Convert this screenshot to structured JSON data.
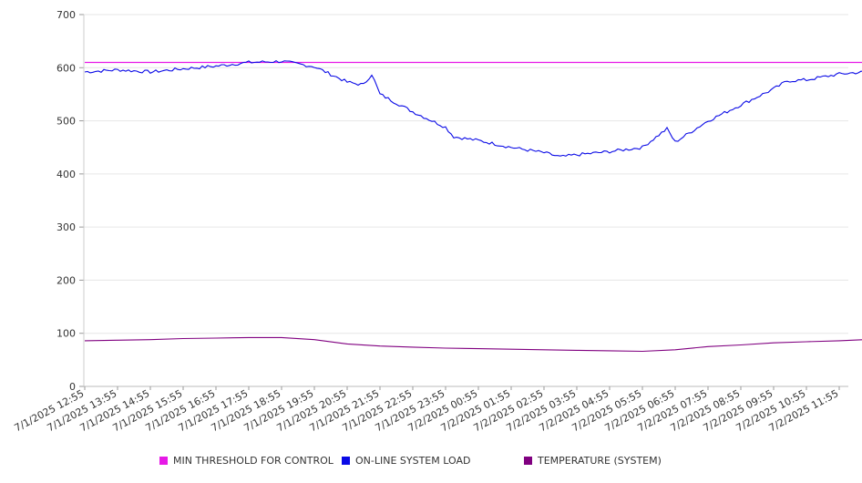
{
  "chart_data": {
    "type": "line",
    "title": "",
    "xlabel": "",
    "ylabel": "",
    "ylim": [
      0,
      700
    ],
    "y_ticks": [
      0,
      100,
      200,
      300,
      400,
      500,
      600,
      700
    ],
    "x_tick_labels": [
      "7/1/2025 12:55",
      "7/1/2025 13:55",
      "7/1/2025 14:55",
      "7/1/2025 15:55",
      "7/1/2025 16:55",
      "7/1/2025 17:55",
      "7/1/2025 18:55",
      "7/1/2025 19:55",
      "7/1/2025 20:55",
      "7/1/2025 21:55",
      "7/1/2025 22:55",
      "7/1/2025 23:55",
      "7/2/2025 00:55",
      "7/2/2025 01:55",
      "7/2/2025 02:55",
      "7/2/2025 03:55",
      "7/2/2025 04:55",
      "7/2/2025 05:55",
      "7/2/2025 06:55",
      "7/2/2025 07:55",
      "7/2/2025 08:55",
      "7/2/2025 09:55",
      "7/2/2025 10:55",
      "7/2/2025 11:55"
    ],
    "grid": true,
    "legend_position": "bottom",
    "series": [
      {
        "name": "MIN THRESHOLD FOR CONTROL",
        "color": "#e619e6",
        "x": [
          "7/1/2025 12:55",
          "7/2/2025 12:40"
        ],
        "values": [
          610,
          610
        ]
      },
      {
        "name": "ON-LINE SYSTEM LOAD",
        "color": "#0a0ae6",
        "x": [
          "7/1/2025 12:55",
          "7/1/2025 13:55",
          "7/1/2025 14:55",
          "7/1/2025 15:55",
          "7/1/2025 16:55",
          "7/1/2025 17:55",
          "7/1/2025 18:55",
          "7/1/2025 19:55",
          "7/1/2025 20:55",
          "7/1/2025 21:10",
          "7/1/2025 21:25",
          "7/1/2025 21:40",
          "7/1/2025 21:55",
          "7/1/2025 22:55",
          "7/1/2025 23:55",
          "7/2/2025 00:10",
          "7/2/2025 00:55",
          "7/2/2025 01:55",
          "7/2/2025 02:55",
          "7/2/2025 03:25",
          "7/2/2025 03:55",
          "7/2/2025 04:55",
          "7/2/2025 05:55",
          "7/2/2025 06:40",
          "7/2/2025 06:55",
          "7/2/2025 07:55",
          "7/2/2025 08:55",
          "7/2/2025 09:55",
          "7/2/2025 10:20",
          "7/2/2025 10:55",
          "7/2/2025 11:55",
          "7/2/2025 12:40"
        ],
        "values": [
          592,
          596,
          592,
          598,
          603,
          610,
          612,
          602,
          573,
          570,
          568,
          588,
          550,
          517,
          488,
          470,
          463,
          450,
          440,
          432,
          436,
          442,
          450,
          485,
          460,
          500,
          530,
          560,
          575,
          577,
          588,
          592
        ]
      },
      {
        "name": "TEMPERATURE (SYSTEM)",
        "color": "#800080",
        "x": [
          "7/1/2025 12:55",
          "7/1/2025 13:55",
          "7/1/2025 14:55",
          "7/1/2025 15:55",
          "7/1/2025 16:55",
          "7/1/2025 17:55",
          "7/1/2025 18:55",
          "7/1/2025 19:55",
          "7/1/2025 20:55",
          "7/1/2025 21:55",
          "7/1/2025 22:55",
          "7/1/2025 23:55",
          "7/2/2025 00:55",
          "7/2/2025 01:55",
          "7/2/2025 02:55",
          "7/2/2025 03:55",
          "7/2/2025 04:55",
          "7/2/2025 05:55",
          "7/2/2025 06:55",
          "7/2/2025 07:55",
          "7/2/2025 08:55",
          "7/2/2025 09:55",
          "7/2/2025 10:55",
          "7/2/2025 11:55",
          "7/2/2025 12:40"
        ],
        "values": [
          86,
          87,
          88,
          90,
          91,
          92,
          92,
          88,
          80,
          76,
          74,
          72,
          71,
          70,
          69,
          68,
          67,
          66,
          69,
          75,
          78,
          82,
          84,
          86,
          88
        ]
      }
    ]
  }
}
